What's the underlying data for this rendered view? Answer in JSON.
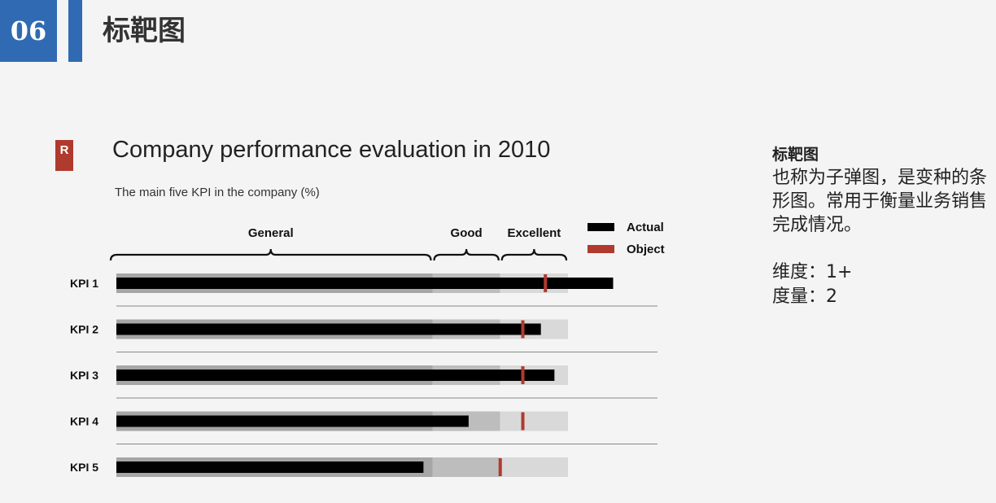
{
  "header": {
    "number": "06",
    "title": "标靶图"
  },
  "logo": {
    "letter": "R"
  },
  "side_panel": {
    "title": "标靶图",
    "description": "也称为子弹图，是变种的条形图。常用于衡量业务销售完成情况。",
    "dimension_line": "维度：1+",
    "measure_line": "度量：2"
  },
  "chart_data": {
    "type": "bullet",
    "title": "Company performance evaluation in 2010",
    "subtitle": "The main five KPI in the company (%)",
    "xlim": [
      0,
      100
    ],
    "bands": [
      {
        "label": "General",
        "from": 0,
        "to": 70,
        "color": "#a6a6a6"
      },
      {
        "label": "Good",
        "from": 70,
        "to": 85,
        "color": "#bdbdbd"
      },
      {
        "label": "Excellent",
        "from": 85,
        "to": 100,
        "color": "#d9d9d9"
      }
    ],
    "legend": [
      {
        "name": "Actual",
        "color": "#000000"
      },
      {
        "name": "Object",
        "color": "#b03a2e"
      }
    ],
    "legend_position": "top-right",
    "categories": [
      "KPI 1",
      "KPI 2",
      "KPI 3",
      "KPI 4",
      "KPI 5"
    ],
    "series": [
      {
        "name": "Actual",
        "values": [
          110,
          94,
          97,
          78,
          68
        ]
      },
      {
        "name": "Object",
        "values": [
          95,
          90,
          90,
          90,
          85
        ]
      }
    ],
    "colors": {
      "actual": "#000000",
      "target": "#b03a2e",
      "separator": "#888888"
    }
  }
}
